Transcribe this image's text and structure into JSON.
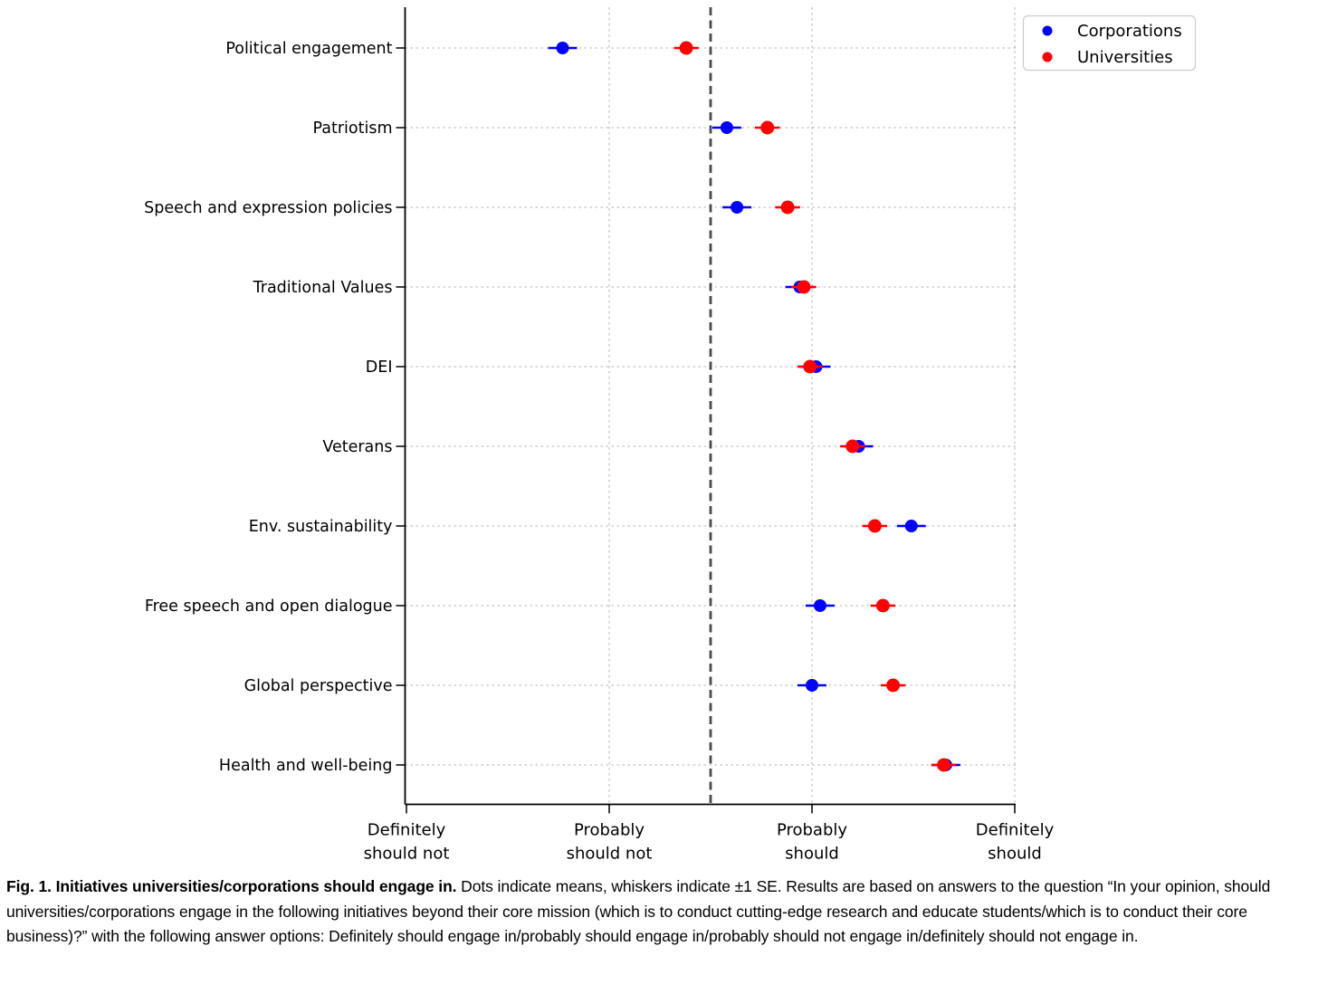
{
  "figure": {
    "caption_bold": "Fig. 1. Initiatives universities/corporations should engage in.",
    "caption_rest": " Dots indicate means, whiskers indicate ±1 SE. Results are based on answers to the question “In your opinion, should universities/corporations engage in the following initiatives beyond their core mission (which is to conduct cutting-edge research and educate students/which is to conduct their core business)?” with the following answer options: Definitely should engage in/probably should engage in/probably should not engage in/definitely should not engage in."
  },
  "chart_data": {
    "type": "scatter",
    "subtype": "horizontal-dot-plot-with-error-bars",
    "categories": [
      "Political engagement",
      "Patriotism",
      "Speech and expression policies",
      "Traditional Values",
      "DEI",
      "Veterans",
      "Env. sustainability",
      "Free speech and open dialogue",
      "Global perspective",
      "Health and well-being"
    ],
    "series": [
      {
        "name": "Corporations",
        "color": "#0000ff",
        "values": [
          1.77,
          2.58,
          2.63,
          2.94,
          3.02,
          3.23,
          3.49,
          3.04,
          3.0,
          3.66
        ],
        "se": [
          0.04,
          0.04,
          0.04,
          0.04,
          0.04,
          0.04,
          0.04,
          0.04,
          0.04,
          0.04
        ]
      },
      {
        "name": "Universities",
        "color": "#ff0000",
        "values": [
          2.38,
          2.78,
          2.88,
          2.96,
          2.99,
          3.2,
          3.31,
          3.35,
          3.4,
          3.65
        ],
        "se": [
          0.03,
          0.03,
          0.03,
          0.03,
          0.03,
          0.03,
          0.03,
          0.03,
          0.03,
          0.03
        ]
      }
    ],
    "x_ticks": [
      {
        "value": 1,
        "lines": [
          "Definitely",
          "should not"
        ]
      },
      {
        "value": 2,
        "lines": [
          "Probably",
          "should not"
        ]
      },
      {
        "value": 3,
        "lines": [
          "Probably",
          "should"
        ]
      },
      {
        "value": 4,
        "lines": [
          "Definitely",
          "should"
        ]
      }
    ],
    "xlim": [
      1,
      4
    ],
    "reference_line": {
      "x": 2.5,
      "style": "dashed",
      "color": "#4a4a4a"
    },
    "grid": true,
    "grid_color": "#b3b3b3",
    "legend_position": "upper right",
    "legend": [
      "Corporations",
      "Universities"
    ]
  }
}
